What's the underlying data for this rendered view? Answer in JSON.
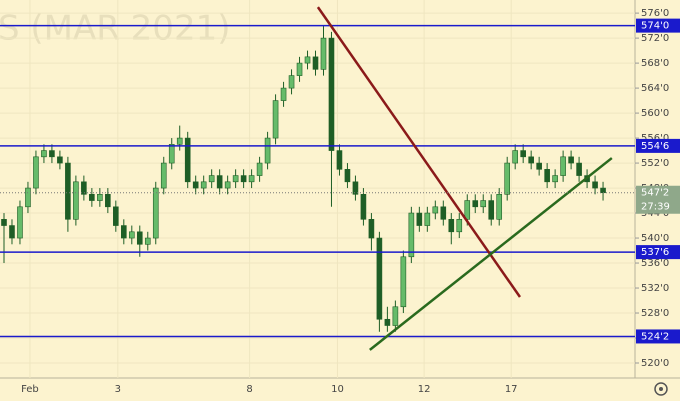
{
  "chart_data": {
    "type": "candlestick",
    "title": "S (MAR 2021)",
    "x": [
      0,
      1,
      2,
      3,
      4,
      5,
      6,
      7,
      8,
      9,
      10,
      11,
      12,
      13,
      14,
      15,
      16,
      17,
      18,
      19,
      20,
      21,
      22,
      23,
      24,
      25,
      26,
      27,
      28,
      29,
      30,
      31,
      32,
      33,
      34,
      35,
      36,
      37,
      38,
      39,
      40,
      41,
      42,
      43,
      44,
      45,
      46,
      47,
      48,
      49,
      50,
      51,
      52,
      53,
      54,
      55,
      56,
      57,
      58,
      59,
      60,
      61,
      62,
      63,
      64,
      65,
      66,
      67,
      68,
      69,
      70,
      71,
      72,
      73,
      74,
      75
    ],
    "open": [
      543,
      542,
      540,
      545,
      548,
      553,
      554,
      553,
      552,
      543,
      549,
      547,
      546,
      547,
      545,
      542,
      540,
      541,
      539,
      540,
      548,
      552,
      555,
      556,
      549,
      548,
      549,
      550,
      548,
      549,
      550,
      549,
      550,
      552,
      556,
      562,
      564,
      566,
      568,
      569,
      567,
      572,
      554,
      551,
      549,
      547,
      543,
      540,
      527,
      526,
      529,
      537,
      544,
      542,
      544,
      545,
      543,
      541,
      543,
      546,
      545,
      546,
      543,
      547,
      552,
      554,
      553,
      552,
      551,
      549,
      550,
      553,
      552,
      550,
      549,
      548
    ],
    "high": [
      544,
      543,
      546,
      549,
      554,
      555,
      555,
      554,
      553,
      550,
      550,
      548,
      548,
      548,
      546,
      543,
      542,
      542,
      541,
      549,
      553,
      556,
      558,
      557,
      550,
      550,
      551,
      551,
      550,
      551,
      551,
      551,
      553,
      557,
      563,
      565,
      567,
      569,
      570,
      570,
      574,
      573,
      555,
      552,
      550,
      548,
      544,
      541,
      529,
      530,
      538,
      545,
      545,
      545,
      546,
      546,
      544,
      544,
      547,
      547,
      547,
      547,
      548,
      553,
      555,
      555,
      554,
      553,
      552,
      551,
      554,
      554,
      553,
      551,
      550,
      549
    ],
    "low": [
      536,
      539,
      539,
      544,
      547,
      552,
      552,
      551,
      541,
      542,
      546,
      545,
      545,
      544,
      541,
      539,
      539,
      537,
      538,
      539,
      547,
      551,
      554,
      548,
      547,
      547,
      548,
      547,
      547,
      548,
      548,
      548,
      549,
      551,
      555,
      561,
      563,
      565,
      567,
      566,
      566,
      545,
      550,
      548,
      546,
      542,
      538,
      525,
      525,
      525,
      528,
      536,
      541,
      541,
      543,
      542,
      539,
      540,
      542,
      544,
      544,
      542,
      542,
      546,
      551,
      552,
      551,
      550,
      548,
      548,
      549,
      551,
      549,
      548,
      547,
      546
    ],
    "close": [
      542,
      540,
      545,
      548,
      553,
      554,
      553,
      552,
      543,
      549,
      547,
      546,
      547,
      545,
      542,
      540,
      541,
      539,
      540,
      548,
      552,
      555,
      556,
      549,
      548,
      549,
      550,
      548,
      549,
      550,
      549,
      550,
      552,
      556,
      562,
      564,
      566,
      568,
      569,
      567,
      572,
      554,
      551,
      549,
      547,
      543,
      540,
      527,
      526,
      529,
      537,
      544,
      542,
      544,
      545,
      543,
      541,
      543,
      546,
      545,
      546,
      543,
      547,
      552,
      554,
      553,
      552,
      551,
      549,
      550,
      553,
      552,
      550,
      549,
      548,
      547.25
    ],
    "up_color": "#66bb6a",
    "down_color": "#1e5e26",
    "xlim": [
      -0.5,
      79
    ],
    "ylim": [
      517.6,
      578.1
    ],
    "xticks": [
      {
        "value": 3.25,
        "label": "Feb"
      },
      {
        "value": 14.25,
        "label": "3"
      },
      {
        "value": 30.75,
        "label": "8"
      },
      {
        "value": 41.75,
        "label": "10"
      },
      {
        "value": 52.6,
        "label": "12"
      },
      {
        "value": 63.5,
        "label": "17"
      }
    ],
    "yticks": [
      {
        "value": 520,
        "label": "520'0"
      },
      {
        "value": 524,
        "label": "524'0"
      },
      {
        "value": 528,
        "label": "528'0"
      },
      {
        "value": 532,
        "label": "532'0"
      },
      {
        "value": 536,
        "label": "536'0"
      },
      {
        "value": 540,
        "label": "540'0"
      },
      {
        "value": 544,
        "label": "544'0"
      },
      {
        "value": 548,
        "label": "548'0"
      },
      {
        "value": 552,
        "label": "552'0"
      },
      {
        "value": 556,
        "label": "556'0"
      },
      {
        "value": 560,
        "label": "560'0"
      },
      {
        "value": 564,
        "label": "564'0"
      },
      {
        "value": 568,
        "label": "568'0"
      },
      {
        "value": 572,
        "label": "572'0"
      },
      {
        "value": 576,
        "label": "576'0"
      }
    ],
    "grid": true,
    "levels": [
      {
        "value": 574,
        "label": "574'0"
      },
      {
        "value": 554.75,
        "label": "554'6"
      },
      {
        "value": 537.75,
        "label": "537'6"
      },
      {
        "value": 524.25,
        "label": "524'2"
      }
    ],
    "level_color": "#1a1acc",
    "trend_lines": [
      {
        "x": [
          39.3,
          64.6
        ],
        "y": [
          576.96,
          530.56
        ],
        "color": "#8b1a1a"
      },
      {
        "x": [
          45.8,
          76.1
        ],
        "y": [
          522.1,
          552.8
        ],
        "color": "#2a6a1e"
      }
    ],
    "last_price": {
      "value": 547.25,
      "label": "547'2"
    },
    "countdown": "27:39",
    "last_color": "#8fa88a"
  }
}
